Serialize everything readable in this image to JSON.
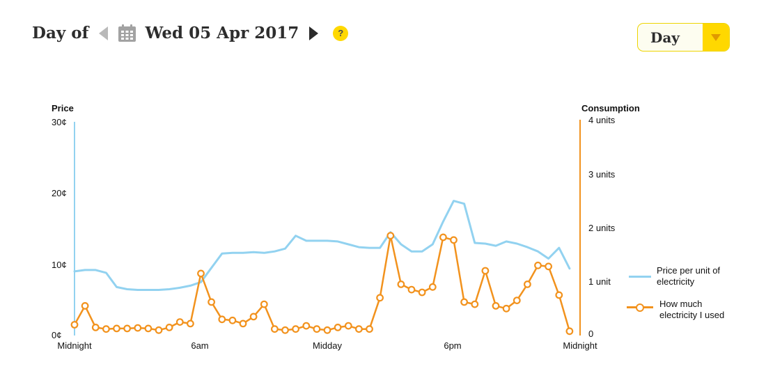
{
  "header": {
    "day_of_label": "Day of",
    "date": "Wed 05 Apr 2017",
    "help_label": "?"
  },
  "view_selector": {
    "selected": "Day"
  },
  "colors": {
    "price_blue": "#92d2f0",
    "consumption_orange": "#f2921d",
    "accent_yellow": "#ffd800"
  },
  "chart_data": {
    "type": "line",
    "interval_minutes": 30,
    "x_axis": {
      "labels": [
        "Midnight",
        "6am",
        "Midday",
        "6pm",
        "Midnight"
      ]
    },
    "left_axis": {
      "title": "Price",
      "ticks": [
        "30¢",
        "20¢",
        "10¢",
        "0¢"
      ],
      "min": 0,
      "max": 30,
      "color": "#92d2f0"
    },
    "right_axis": {
      "title": "Consumption",
      "ticks": [
        "4 units",
        "3 units",
        "2 units",
        "1 unit",
        "0"
      ],
      "min": 0,
      "max": 4,
      "color": "#f2921d"
    },
    "series": [
      {
        "name": "Price per unit of electricity",
        "axis": "left",
        "unit": "cents",
        "color": "#92d2f0",
        "markers": false,
        "values": [
          9.0,
          9.2,
          9.2,
          8.8,
          6.8,
          6.5,
          6.4,
          6.4,
          6.4,
          6.5,
          6.7,
          7.0,
          7.5,
          9.5,
          11.5,
          11.6,
          11.6,
          11.7,
          11.6,
          11.8,
          12.2,
          14.0,
          13.3,
          13.3,
          13.3,
          13.2,
          12.8,
          12.4,
          12.3,
          12.3,
          14.5,
          12.8,
          11.8,
          11.8,
          12.8,
          16.0,
          18.9,
          18.5,
          13.0,
          12.9,
          12.6,
          13.2,
          12.9,
          12.4,
          11.8,
          10.8,
          12.3,
          9.4
        ]
      },
      {
        "name": "How much electricity I used",
        "axis": "right",
        "unit": "units",
        "color": "#f2921d",
        "markers": true,
        "values": [
          0.2,
          0.55,
          0.15,
          0.12,
          0.13,
          0.13,
          0.14,
          0.13,
          0.1,
          0.15,
          0.25,
          0.22,
          1.15,
          0.62,
          0.3,
          0.28,
          0.22,
          0.35,
          0.58,
          0.12,
          0.1,
          0.12,
          0.18,
          0.12,
          0.1,
          0.15,
          0.18,
          0.12,
          0.12,
          0.7,
          1.85,
          0.95,
          0.85,
          0.8,
          0.9,
          1.82,
          1.77,
          0.62,
          0.58,
          1.2,
          0.55,
          0.5,
          0.65,
          0.95,
          1.3,
          1.28,
          0.75,
          0.08
        ]
      }
    ],
    "legend_position": "right"
  }
}
